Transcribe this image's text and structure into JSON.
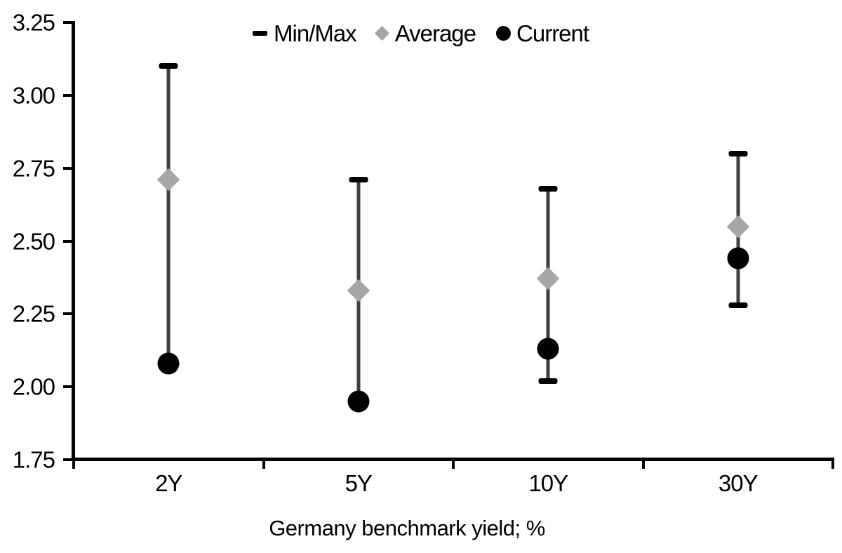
{
  "chart_data": {
    "type": "scatter",
    "variant": "min-max-range",
    "categories": [
      "2Y",
      "5Y",
      "10Y",
      "30Y"
    ],
    "series": [
      {
        "name": "Min/Max",
        "marker": "range",
        "max": [
          3.1,
          2.71,
          2.68,
          2.8
        ],
        "min": [
          2.08,
          1.95,
          2.02,
          2.28
        ]
      },
      {
        "name": "Average",
        "marker": "diamond",
        "values": [
          2.71,
          2.33,
          2.37,
          2.55
        ]
      },
      {
        "name": "Current",
        "marker": "circle",
        "values": [
          2.08,
          1.95,
          2.13,
          2.44
        ]
      }
    ],
    "xlabel": "Germany benchmark yield; %",
    "ylim": [
      1.75,
      3.25
    ],
    "ytick_step": 0.25,
    "yticks": [
      "3.25",
      "3.00",
      "2.75",
      "2.50",
      "2.25",
      "2.00",
      "1.75"
    ],
    "grid": false,
    "legend": {
      "position": "top-center",
      "items": [
        "Min/Max",
        "Average",
        "Current"
      ]
    },
    "colors": {
      "black": "#000000",
      "average_gray": "#a6a6a6",
      "range_line": "#3f3f3f"
    }
  }
}
